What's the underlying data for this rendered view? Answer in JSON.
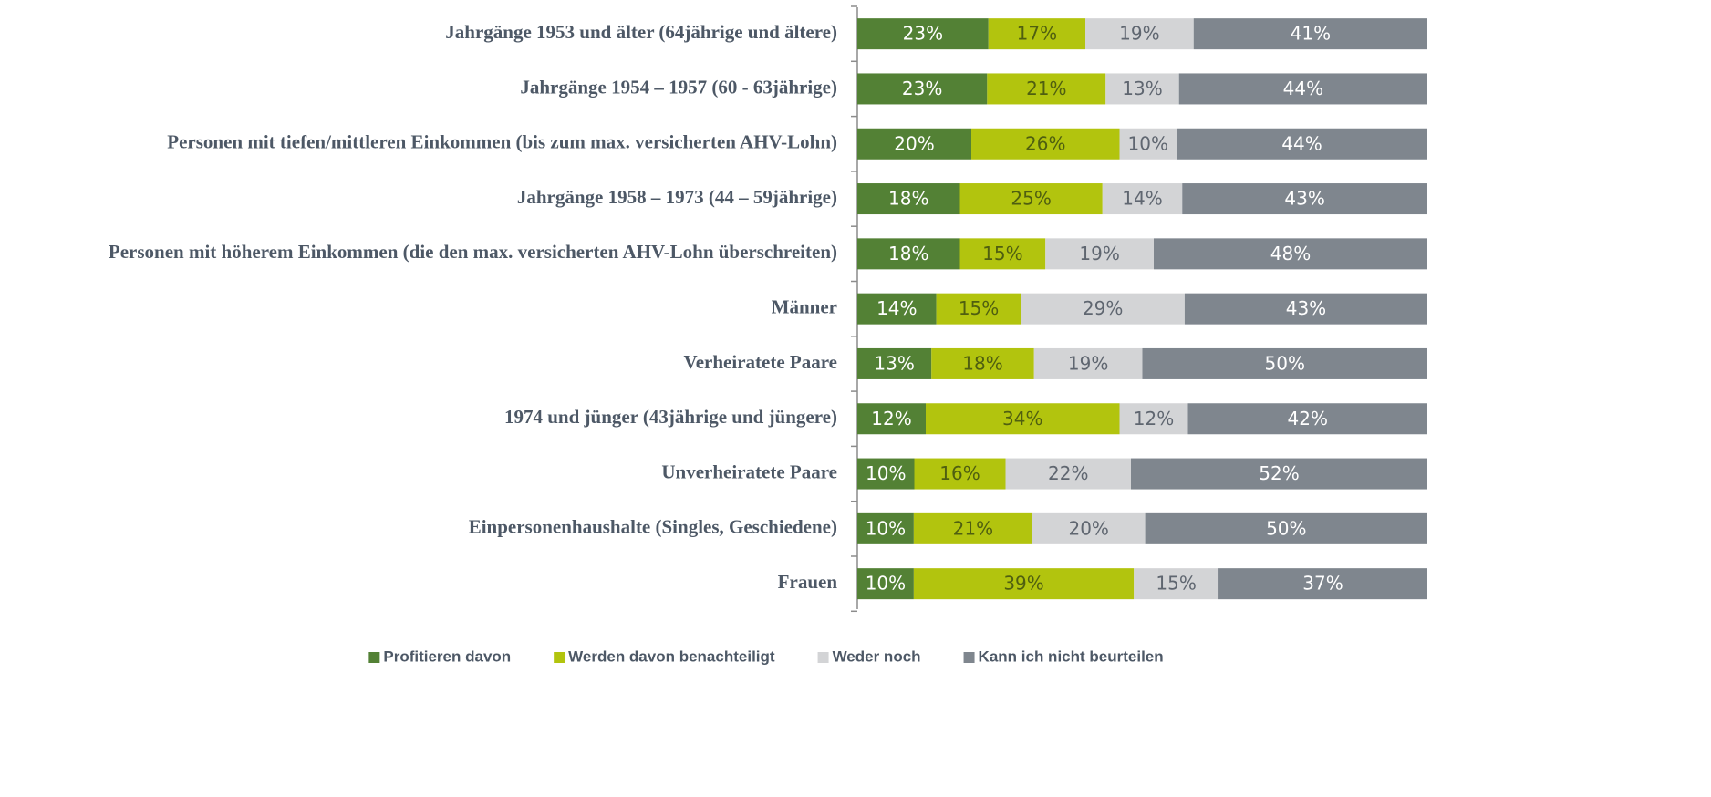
{
  "chart_data": {
    "type": "bar",
    "orientation": "horizontal",
    "stacked": true,
    "categories": [
      "Jahrgänge 1953 und älter (64jährige und ältere)",
      "Jahrgänge 1954 – 1957 (60 - 63jährige)",
      "Personen mit tiefen/mittleren Einkommen (bis zum max. versicherten AHV-Lohn)",
      "Jahrgänge 1958 – 1973 (44 – 59jährige)",
      "Personen mit höherem Einkommen (die den max. versicherten AHV-Lohn überschreiten)",
      "Männer",
      "Verheiratete Paare",
      "1974 und jünger (43jährige und jüngere)",
      "Unverheiratete Paare",
      "Einpersonenhaushalte (Singles, Geschiedene)",
      "Frauen"
    ],
    "series": [
      {
        "name": "Profitieren davon",
        "color": "#538135",
        "values": [
          23,
          23,
          20,
          18,
          18,
          14,
          13,
          12,
          10,
          10,
          10
        ],
        "value_labels": [
          "23%",
          "23%",
          "20%",
          "18%",
          "18%",
          "14%",
          "13%",
          "12%",
          "10%",
          "10%",
          "10%"
        ]
      },
      {
        "name": "Werden davon benachteiligt",
        "color": "#b2c40e",
        "values": [
          17,
          21,
          26,
          25,
          15,
          15,
          18,
          34,
          16,
          21,
          39
        ],
        "value_labels": [
          "17%",
          "21%",
          "26%",
          "25%",
          "15%",
          "15%",
          "18%",
          "34%",
          "16%",
          "21%",
          "39%"
        ]
      },
      {
        "name": "Weder noch",
        "color": "#d3d4d6",
        "values": [
          19,
          13,
          10,
          14,
          19,
          29,
          19,
          12,
          22,
          20,
          15
        ],
        "value_labels": [
          "19%",
          "13%",
          "10%",
          "14%",
          "19%",
          "29%",
          "19%",
          "12%",
          "22%",
          "20%",
          "15%"
        ]
      },
      {
        "name": "Kann ich nicht beurteilen",
        "color": "#7f868e",
        "values": [
          41,
          44,
          44,
          43,
          48,
          43,
          50,
          42,
          52,
          50,
          37
        ],
        "value_labels": [
          "41%",
          "44%",
          "44%",
          "43%",
          "48%",
          "43%",
          "50%",
          "42%",
          "52%",
          "50%",
          "37%"
        ]
      }
    ],
    "legend": "bottom"
  }
}
